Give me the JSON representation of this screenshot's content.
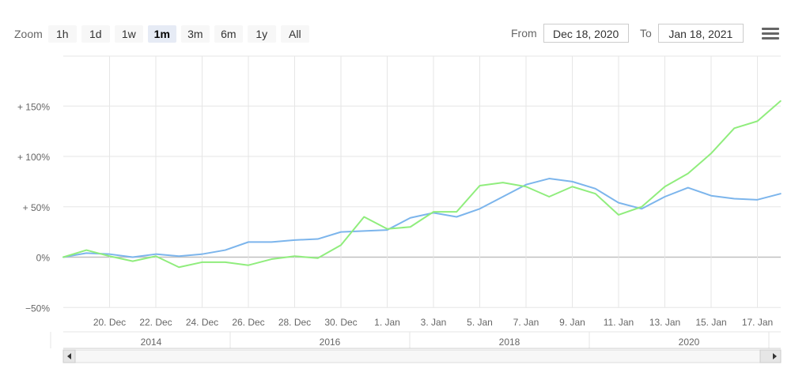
{
  "toolbar": {
    "zoom_label": "Zoom",
    "zoom_buttons": [
      "1h",
      "1d",
      "1w",
      "1m",
      "3m",
      "6m",
      "1y",
      "All"
    ],
    "active_zoom": "1m",
    "from_label": "From",
    "from_value": "Dec 18, 2020",
    "to_label": "To",
    "to_value": "Jan 18, 2021",
    "menu_icon": "hamburger-menu-icon"
  },
  "chart_data": {
    "type": "line",
    "y_tick_labels": [
      "−50%",
      "0%",
      "+ 50%",
      "+ 100%",
      "+ 150%"
    ],
    "y_tick_values": [
      -50,
      0,
      50,
      100,
      150
    ],
    "ylim": [
      -50,
      200
    ],
    "x_tick_labels": [
      "20. Dec",
      "22. Dec",
      "24. Dec",
      "26. Dec",
      "28. Dec",
      "30. Dec",
      "1. Jan",
      "3. Jan",
      "5. Jan",
      "7. Jan",
      "9. Jan",
      "11. Jan",
      "13. Jan",
      "15. Jan",
      "17. Jan"
    ],
    "x": [
      "Dec 18",
      "Dec 19",
      "Dec 20",
      "Dec 21",
      "Dec 22",
      "Dec 23",
      "Dec 24",
      "Dec 25",
      "Dec 26",
      "Dec 27",
      "Dec 28",
      "Dec 29",
      "Dec 30",
      "Dec 31",
      "Jan 1",
      "Jan 2",
      "Jan 3",
      "Jan 4",
      "Jan 5",
      "Jan 6",
      "Jan 7",
      "Jan 8",
      "Jan 9",
      "Jan 10",
      "Jan 11",
      "Jan 12",
      "Jan 13",
      "Jan 14",
      "Jan 15",
      "Jan 16",
      "Jan 17",
      "Jan 18"
    ],
    "series": [
      {
        "color": "#7cb5ec",
        "values": [
          0,
          4,
          3,
          0,
          3,
          1,
          3,
          7,
          15,
          15,
          17,
          18,
          25,
          26,
          27,
          39,
          44,
          40,
          48,
          60,
          72,
          78,
          75,
          68,
          54,
          48,
          60,
          69,
          61,
          58,
          57,
          63
        ]
      },
      {
        "color": "#90ed7d",
        "values": [
          0,
          7,
          1,
          -4,
          1,
          -10,
          -5,
          -5,
          -8,
          -2,
          1,
          -1,
          12,
          40,
          28,
          30,
          45,
          45,
          71,
          74,
          70,
          60,
          70,
          63,
          42,
          50,
          70,
          83,
          103,
          128,
          135,
          155
        ]
      }
    ],
    "navigator": {
      "axis_labels": [
        "2014",
        "2016",
        "2018",
        "2020"
      ],
      "scroll_left_icon": "arrow-left-icon",
      "scroll_right_icon": "arrow-right-icon"
    }
  }
}
